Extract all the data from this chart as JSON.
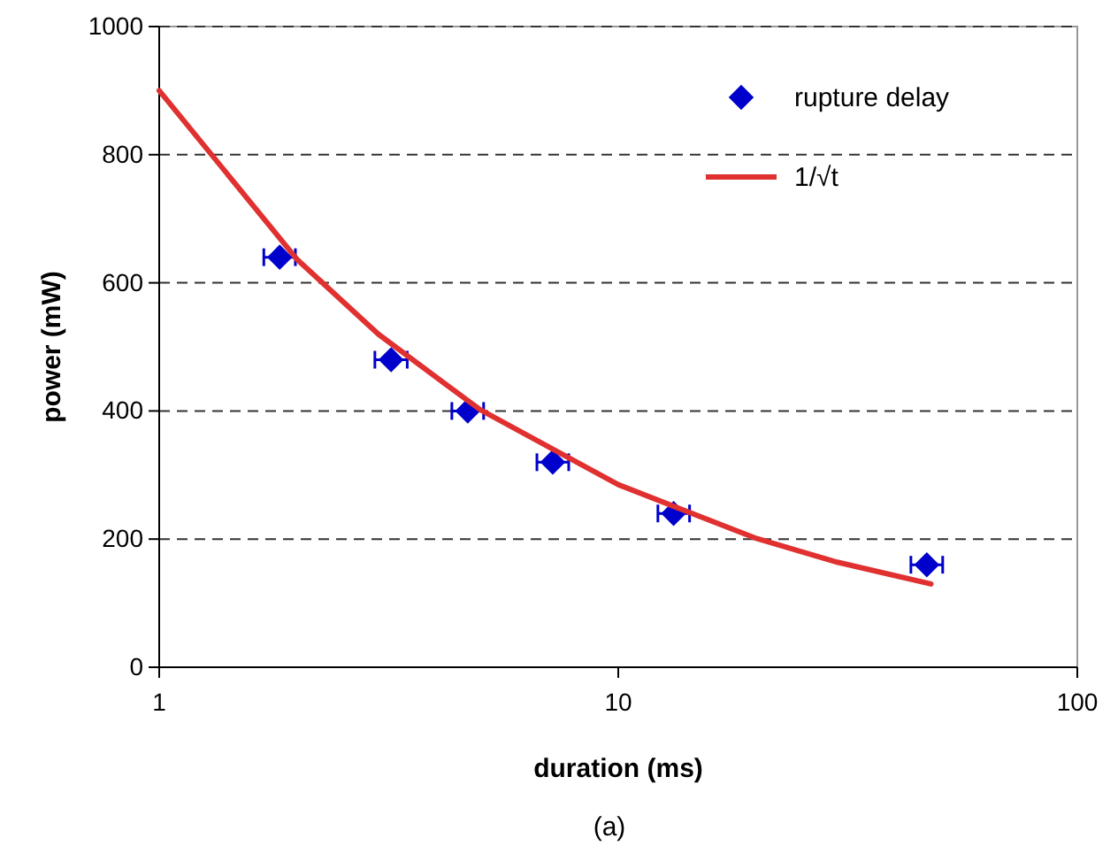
{
  "chart_data": {
    "type": "scatter",
    "xlabel": "duration (ms)",
    "ylabel": "power (mW)",
    "log": "x",
    "xlim": [
      1,
      100
    ],
    "xticks": [
      1,
      10,
      100
    ],
    "ylim": [
      0,
      1000
    ],
    "yticks": [
      0,
      200,
      400,
      600,
      800,
      1000
    ],
    "grid": "y",
    "legend": "top right",
    "annotations": [
      "(a)"
    ],
    "series": [
      {
        "name": "rupture delay",
        "color": "#0000cc",
        "marker": "diamond",
        "x": [
          1.83,
          3.2,
          4.7,
          7.2,
          13.2,
          47
        ],
        "values": [
          640,
          480,
          400,
          320,
          240,
          160
        ],
        "xerrors": [
          [
            1.69,
            1.98
          ],
          [
            2.95,
            3.47
          ],
          [
            4.34,
            5.09
          ],
          [
            6.65,
            7.8
          ],
          [
            12.2,
            14.3
          ],
          [
            43.4,
            50.9
          ]
        ]
      },
      {
        "name": "1/√t",
        "type": "line",
        "color": "#e03030",
        "marker": "none",
        "line_style": "solid",
        "x": [
          1,
          2,
          3,
          5,
          10,
          20,
          30,
          48
        ],
        "values": [
          900,
          636,
          520,
          402,
          285,
          201,
          164,
          130
        ]
      }
    ]
  }
}
